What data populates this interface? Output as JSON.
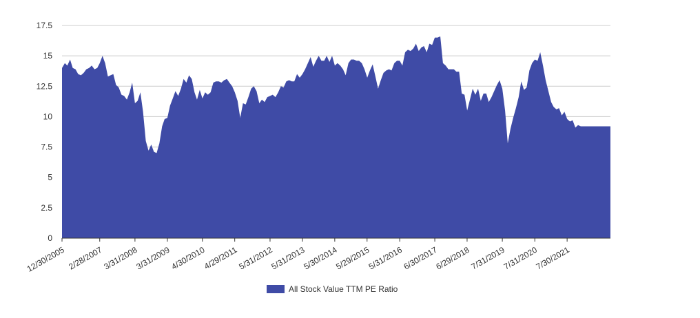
{
  "chart_data": {
    "type": "area",
    "title": "",
    "xlabel": "",
    "ylabel": "",
    "ylim": [
      0,
      17.5
    ],
    "yticks": [
      "0",
      "2.5",
      "5",
      "7.5",
      "10",
      "12.5",
      "15",
      "17.5"
    ],
    "xlim": [
      "2005-12-30",
      "2022-11-30"
    ],
    "xticks": [
      "12/30/2005",
      "2/28/2007",
      "3/31/2008",
      "3/31/2009",
      "4/30/2010",
      "4/29/2011",
      "5/31/2012",
      "5/31/2013",
      "5/30/2014",
      "5/29/2015",
      "5/31/2016",
      "6/30/2017",
      "6/29/2018",
      "7/31/2019",
      "7/31/2020",
      "7/30/2021"
    ],
    "grid": true,
    "legend_position": "bottom",
    "colors": {
      "series": "#3f4ba6",
      "grid": "#cccccc",
      "text": "#333333"
    },
    "series": [
      {
        "name": "All Stock Value TTM PE Ratio",
        "points": [
          [
            "2005-12-30",
            14.0
          ],
          [
            "2006-01-31",
            14.4
          ],
          [
            "2006-02-28",
            14.2
          ],
          [
            "2006-03-31",
            14.7
          ],
          [
            "2006-04-30",
            14.0
          ],
          [
            "2006-05-31",
            13.9
          ],
          [
            "2006-06-30",
            13.5
          ],
          [
            "2006-07-31",
            13.4
          ],
          [
            "2006-08-31",
            13.6
          ],
          [
            "2006-09-30",
            13.9
          ],
          [
            "2006-10-31",
            14.0
          ],
          [
            "2006-11-30",
            14.2
          ],
          [
            "2006-12-31",
            13.9
          ],
          [
            "2007-01-31",
            14.0
          ],
          [
            "2007-02-28",
            14.4
          ],
          [
            "2007-03-31",
            15.0
          ],
          [
            "2007-04-30",
            14.4
          ],
          [
            "2007-05-31",
            13.3
          ],
          [
            "2007-06-30",
            13.4
          ],
          [
            "2007-07-31",
            13.5
          ],
          [
            "2007-08-31",
            12.6
          ],
          [
            "2007-09-30",
            12.4
          ],
          [
            "2007-10-31",
            11.8
          ],
          [
            "2007-11-30",
            11.7
          ],
          [
            "2007-12-31",
            11.4
          ],
          [
            "2008-01-31",
            12.0
          ],
          [
            "2008-02-29",
            12.8
          ],
          [
            "2008-03-31",
            11.1
          ],
          [
            "2008-04-30",
            11.3
          ],
          [
            "2008-05-31",
            12.0
          ],
          [
            "2008-06-30",
            10.4
          ],
          [
            "2008-07-31",
            8.0
          ],
          [
            "2008-08-31",
            7.2
          ],
          [
            "2008-09-30",
            7.7
          ],
          [
            "2008-10-31",
            7.1
          ],
          [
            "2008-11-30",
            7.0
          ],
          [
            "2008-12-31",
            7.8
          ],
          [
            "2009-01-31",
            9.2
          ],
          [
            "2009-02-28",
            9.8
          ],
          [
            "2009-03-31",
            9.9
          ],
          [
            "2009-04-30",
            10.9
          ],
          [
            "2009-05-31",
            11.5
          ],
          [
            "2009-06-30",
            12.1
          ],
          [
            "2009-07-31",
            11.7
          ],
          [
            "2009-08-31",
            12.3
          ],
          [
            "2009-09-30",
            13.1
          ],
          [
            "2009-10-31",
            12.8
          ],
          [
            "2009-11-30",
            13.4
          ],
          [
            "2009-12-31",
            13.1
          ],
          [
            "2010-01-31",
            12.0
          ],
          [
            "2010-02-28",
            11.4
          ],
          [
            "2010-03-31",
            12.2
          ],
          [
            "2010-04-30",
            11.5
          ],
          [
            "2010-05-31",
            12.0
          ],
          [
            "2010-06-30",
            11.8
          ],
          [
            "2010-07-31",
            12.0
          ],
          [
            "2010-08-31",
            12.8
          ],
          [
            "2010-09-30",
            12.9
          ],
          [
            "2010-10-31",
            12.9
          ],
          [
            "2010-11-30",
            12.8
          ],
          [
            "2010-12-31",
            13.0
          ],
          [
            "2011-01-31",
            13.1
          ],
          [
            "2011-02-28",
            12.8
          ],
          [
            "2011-03-31",
            12.5
          ],
          [
            "2011-04-30",
            12.0
          ],
          [
            "2011-05-31",
            11.3
          ],
          [
            "2011-06-30",
            9.9
          ],
          [
            "2011-07-31",
            11.1
          ],
          [
            "2011-08-31",
            11.0
          ],
          [
            "2011-09-30",
            11.6
          ],
          [
            "2011-10-31",
            12.3
          ],
          [
            "2011-11-30",
            12.5
          ],
          [
            "2011-12-31",
            12.1
          ],
          [
            "2012-01-31",
            11.1
          ],
          [
            "2012-02-29",
            11.4
          ],
          [
            "2012-03-31",
            11.2
          ],
          [
            "2012-04-30",
            11.6
          ],
          [
            "2012-05-31",
            11.7
          ],
          [
            "2012-06-30",
            11.8
          ],
          [
            "2012-07-31",
            11.6
          ],
          [
            "2012-08-31",
            12.0
          ],
          [
            "2012-09-30",
            12.5
          ],
          [
            "2012-10-31",
            12.4
          ],
          [
            "2012-11-30",
            12.9
          ],
          [
            "2012-12-31",
            13.0
          ],
          [
            "2013-01-31",
            12.9
          ],
          [
            "2013-02-28",
            12.9
          ],
          [
            "2013-03-31",
            13.5
          ],
          [
            "2013-04-30",
            13.2
          ],
          [
            "2013-05-31",
            13.5
          ],
          [
            "2013-06-30",
            13.9
          ],
          [
            "2013-07-31",
            14.4
          ],
          [
            "2013-08-31",
            14.9
          ],
          [
            "2013-09-30",
            14.1
          ],
          [
            "2013-10-31",
            14.6
          ],
          [
            "2013-11-30",
            15.0
          ],
          [
            "2013-12-31",
            14.6
          ],
          [
            "2014-01-31",
            14.6
          ],
          [
            "2014-02-28",
            15.0
          ],
          [
            "2014-03-31",
            14.5
          ],
          [
            "2014-04-30",
            15.0
          ],
          [
            "2014-05-31",
            14.2
          ],
          [
            "2014-06-30",
            14.4
          ],
          [
            "2014-07-31",
            14.2
          ],
          [
            "2014-08-31",
            13.9
          ],
          [
            "2014-09-30",
            13.4
          ],
          [
            "2014-10-31",
            14.4
          ],
          [
            "2014-11-30",
            14.7
          ],
          [
            "2014-12-31",
            14.7
          ],
          [
            "2015-01-31",
            14.6
          ],
          [
            "2015-02-28",
            14.6
          ],
          [
            "2015-03-31",
            14.4
          ],
          [
            "2015-04-30",
            13.9
          ],
          [
            "2015-05-31",
            13.2
          ],
          [
            "2015-06-30",
            13.8
          ],
          [
            "2015-07-31",
            14.3
          ],
          [
            "2015-08-31",
            13.3
          ],
          [
            "2015-09-30",
            12.3
          ],
          [
            "2015-10-31",
            13.0
          ],
          [
            "2015-11-30",
            13.6
          ],
          [
            "2015-12-31",
            13.8
          ],
          [
            "2016-01-31",
            13.9
          ],
          [
            "2016-02-29",
            13.8
          ],
          [
            "2016-03-31",
            14.4
          ],
          [
            "2016-04-30",
            14.6
          ],
          [
            "2016-05-31",
            14.6
          ],
          [
            "2016-06-30",
            14.2
          ],
          [
            "2016-07-31",
            15.3
          ],
          [
            "2016-08-31",
            15.5
          ],
          [
            "2016-09-30",
            15.4
          ],
          [
            "2016-10-31",
            15.6
          ],
          [
            "2016-11-30",
            16.0
          ],
          [
            "2016-12-31",
            15.4
          ],
          [
            "2017-01-31",
            15.7
          ],
          [
            "2017-02-28",
            15.8
          ],
          [
            "2017-03-31",
            15.3
          ],
          [
            "2017-04-30",
            16.0
          ],
          [
            "2017-05-31",
            15.9
          ],
          [
            "2017-06-30",
            16.5
          ],
          [
            "2017-07-31",
            16.5
          ],
          [
            "2017-08-31",
            16.6
          ],
          [
            "2017-09-30",
            14.4
          ],
          [
            "2017-10-31",
            14.2
          ],
          [
            "2017-11-30",
            13.9
          ],
          [
            "2017-12-31",
            13.9
          ],
          [
            "2018-01-31",
            13.9
          ],
          [
            "2018-02-28",
            13.7
          ],
          [
            "2018-03-31",
            13.7
          ],
          [
            "2018-04-30",
            11.9
          ],
          [
            "2018-05-31",
            11.8
          ],
          [
            "2018-06-30",
            10.5
          ],
          [
            "2018-07-31",
            11.4
          ],
          [
            "2018-08-31",
            12.3
          ],
          [
            "2018-09-30",
            11.8
          ],
          [
            "2018-10-31",
            12.3
          ],
          [
            "2018-11-30",
            11.3
          ],
          [
            "2018-12-31",
            11.9
          ],
          [
            "2019-01-31",
            11.9
          ],
          [
            "2019-02-28",
            11.2
          ],
          [
            "2019-03-31",
            11.6
          ],
          [
            "2019-04-30",
            12.1
          ],
          [
            "2019-05-31",
            12.6
          ],
          [
            "2019-06-30",
            13.0
          ],
          [
            "2019-07-31",
            12.3
          ],
          [
            "2019-08-31",
            10.5
          ],
          [
            "2019-09-30",
            7.8
          ],
          [
            "2019-10-31",
            9.0
          ],
          [
            "2019-11-30",
            9.9
          ],
          [
            "2019-12-31",
            10.7
          ],
          [
            "2020-01-31",
            11.6
          ],
          [
            "2020-02-29",
            12.9
          ],
          [
            "2020-03-31",
            12.2
          ],
          [
            "2020-04-30",
            12.4
          ],
          [
            "2020-05-31",
            13.8
          ],
          [
            "2020-06-30",
            14.4
          ],
          [
            "2020-07-31",
            14.7
          ],
          [
            "2020-08-31",
            14.6
          ],
          [
            "2020-09-30",
            15.3
          ],
          [
            "2020-10-31",
            14.2
          ],
          [
            "2020-11-30",
            13.0
          ],
          [
            "2020-12-31",
            12.1
          ],
          [
            "2021-01-31",
            11.2
          ],
          [
            "2021-02-28",
            10.8
          ],
          [
            "2021-03-31",
            10.6
          ],
          [
            "2021-04-30",
            10.7
          ],
          [
            "2021-05-31",
            10.1
          ],
          [
            "2021-06-30",
            10.4
          ],
          [
            "2021-07-31",
            9.8
          ],
          [
            "2021-08-31",
            9.6
          ],
          [
            "2021-09-30",
            9.7
          ],
          [
            "2021-10-31",
            9.1
          ],
          [
            "2021-11-30",
            9.3
          ],
          [
            "2021-12-31",
            9.2
          ],
          [
            "2022-01-31",
            9.2
          ]
        ]
      }
    ]
  }
}
